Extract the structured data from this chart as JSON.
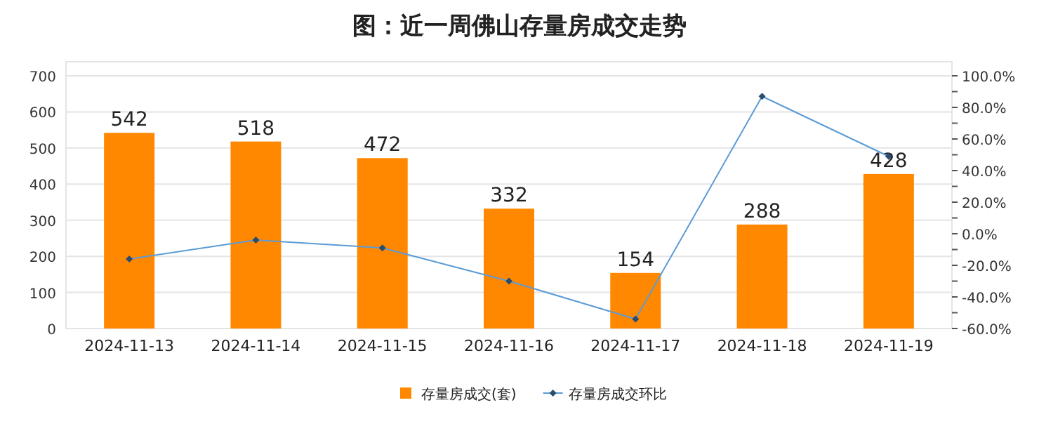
{
  "chart_data": {
    "type": "bar",
    "title": "图：近一周佛山存量房成交走势",
    "categories": [
      "2024-11-13",
      "2024-11-14",
      "2024-11-15",
      "2024-11-16",
      "2024-11-17",
      "2024-11-18",
      "2024-11-19"
    ],
    "series": [
      {
        "name": "存量房成交(套)",
        "color": "#ff8800",
        "values": [
          542,
          518,
          472,
          332,
          154,
          288,
          428
        ],
        "value_labels": [
          "542",
          "518",
          "472",
          "332",
          "154",
          "288",
          "428"
        ]
      },
      {
        "name": "存量房成交环比",
        "type": "line",
        "axis": "y2",
        "color": "#5b9bd5",
        "marker": "diamond",
        "values": [
          -16,
          -4,
          -9,
          -30,
          -54,
          87,
          49
        ]
      }
    ],
    "ylim": [
      0,
      700
    ],
    "yticks": [
      0,
      100,
      200,
      300,
      400,
      500,
      600,
      700
    ],
    "y2lim": [
      -60,
      100
    ],
    "y2ticks": [
      {
        "value": -60,
        "label": "-60.0%"
      },
      {
        "value": -50,
        "label": null
      },
      {
        "value": -40,
        "label": "-40.0%"
      },
      {
        "value": -30,
        "label": null
      },
      {
        "value": -20,
        "label": "-20.0%"
      },
      {
        "value": -10,
        "label": null
      },
      {
        "value": 0,
        "label": "0.0%"
      },
      {
        "value": 10,
        "label": null
      },
      {
        "value": 20,
        "label": "20.0%"
      },
      {
        "value": 30,
        "label": null
      },
      {
        "value": 40,
        "label": "40.0%"
      },
      {
        "value": 50,
        "label": null
      },
      {
        "value": 60,
        "label": "60.0%"
      },
      {
        "value": 70,
        "label": null
      },
      {
        "value": 80,
        "label": "80.0%"
      },
      {
        "value": 90,
        "label": null
      },
      {
        "value": 100,
        "label": "100.0%"
      }
    ],
    "grid": "y",
    "legend": "bottom"
  }
}
